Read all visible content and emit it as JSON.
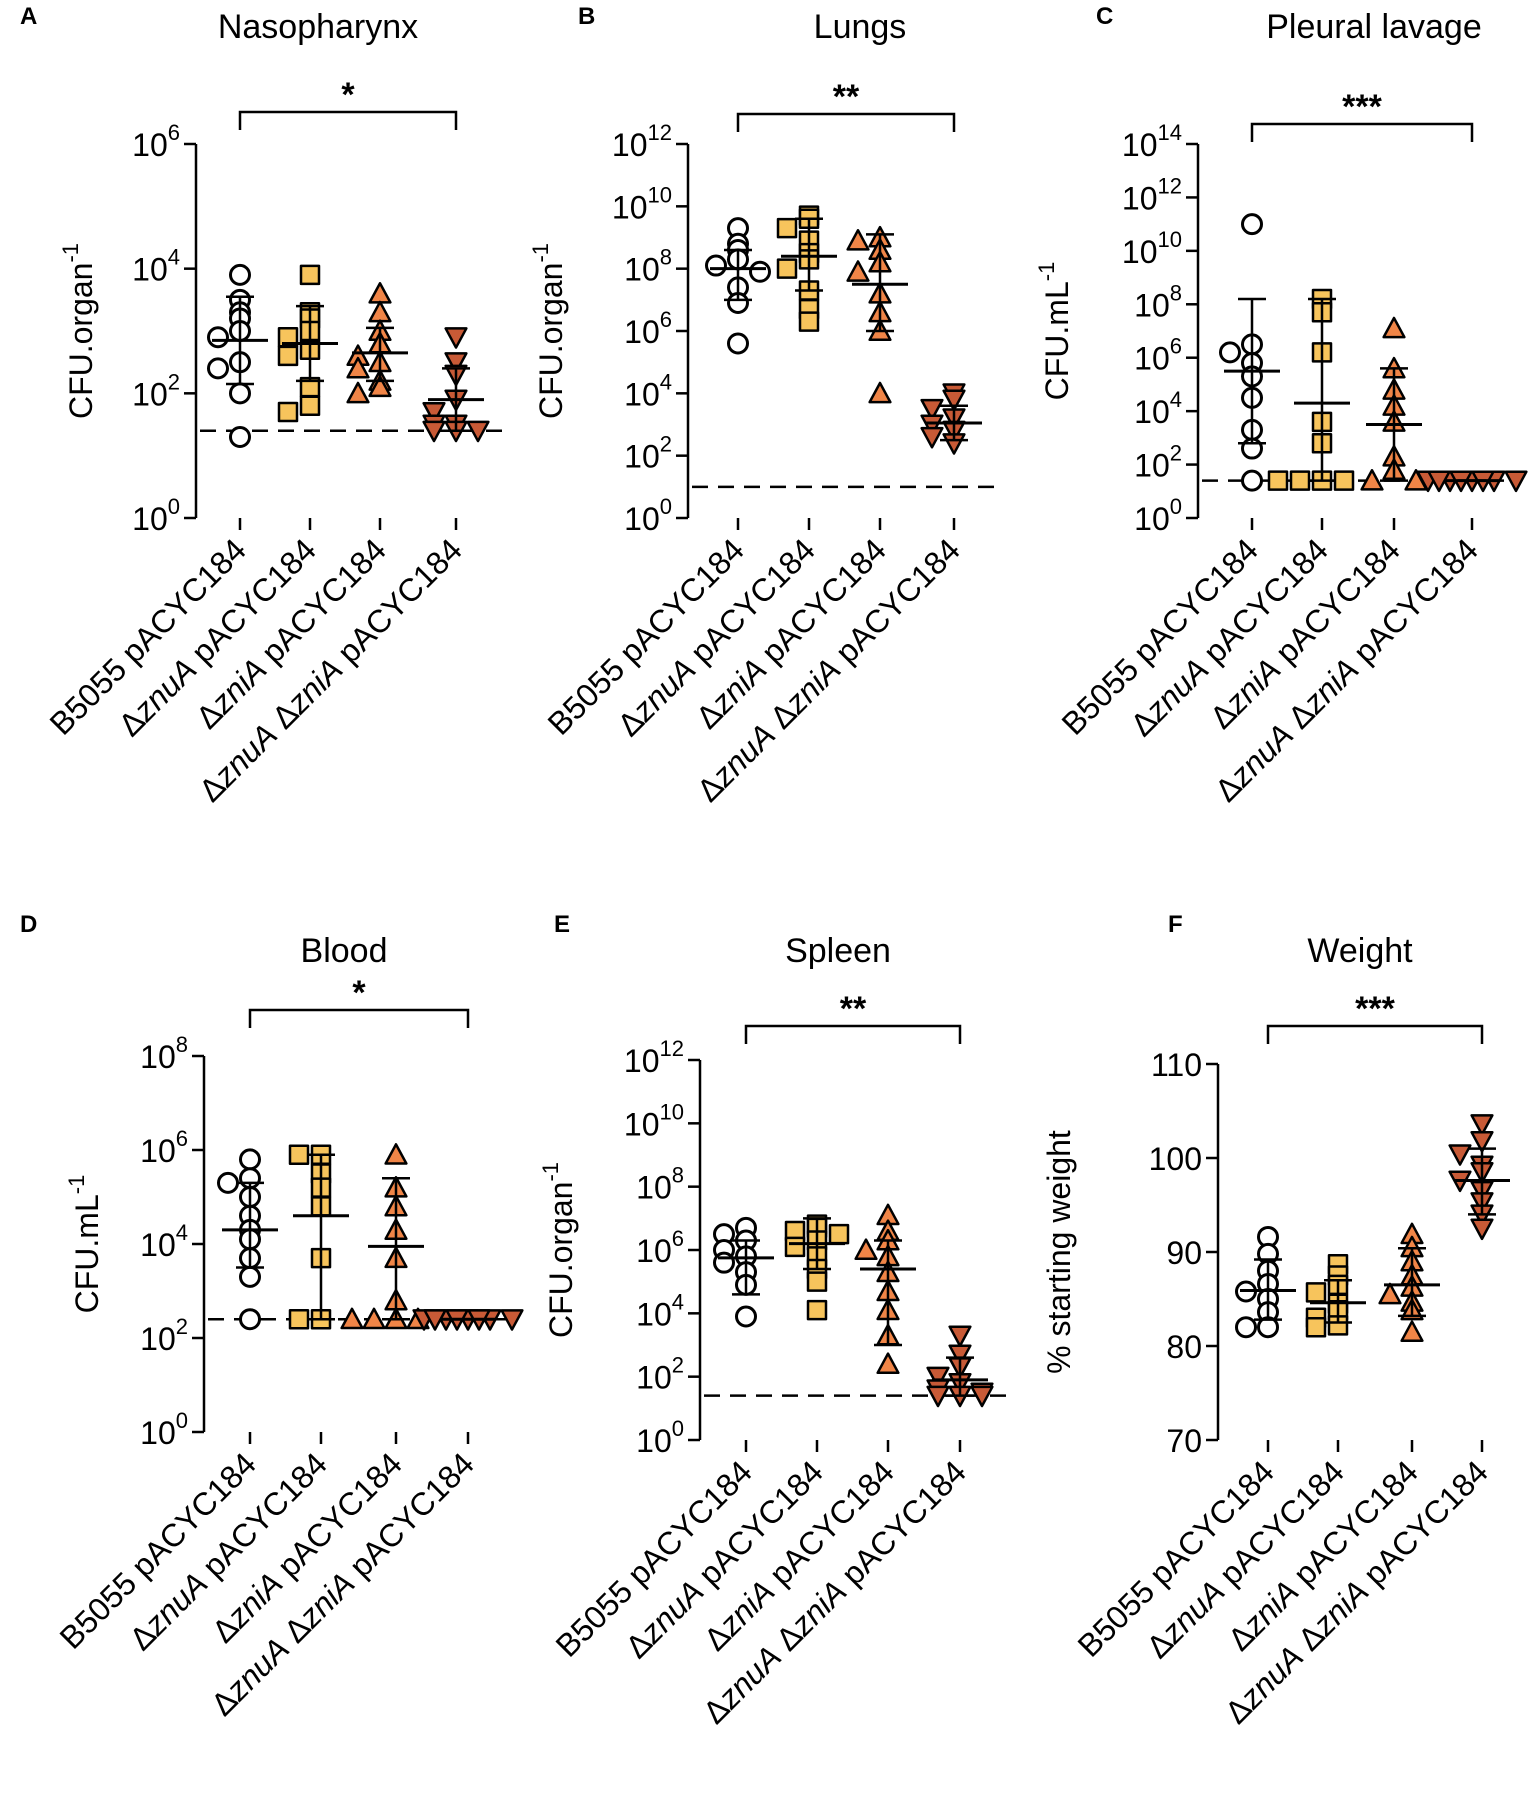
{
  "figure": {
    "category_labels": [
      [
        {
          "t": "B5055 pACYC184",
          "i": false
        }
      ],
      [
        {
          "t": "Δ",
          "i": false
        },
        {
          "t": "znuA",
          "i": true
        },
        {
          "t": " pACYC184",
          "i": false
        }
      ],
      [
        {
          "t": "Δ",
          "i": false
        },
        {
          "t": "zniA",
          "i": true
        },
        {
          "t": " pACYC184",
          "i": false
        }
      ],
      [
        {
          "t": "Δ",
          "i": false
        },
        {
          "t": "znuA",
          "i": true
        },
        {
          "t": " Δ",
          "i": false
        },
        {
          "t": "zniA",
          "i": true
        },
        {
          "t": " pACYC184",
          "i": false
        }
      ]
    ],
    "colors": {
      "group_fills": [
        "#ffffff",
        "#f7c45c",
        "#f08547",
        "#c85a36"
      ],
      "outline": "#000000"
    },
    "markers": [
      "circle",
      "square",
      "triangle-up",
      "triangle-down"
    ]
  },
  "chart_data": [
    {
      "panel": "A",
      "type": "scatter",
      "title": "Nasopharynx",
      "ylabel": "CFU.organ",
      "ylabel_sup": "-1",
      "scale": "log10",
      "ylim": [
        0,
        6
      ],
      "yticks": [
        0,
        2,
        4,
        6
      ],
      "tick_base": "10",
      "detection_limit": 1.4,
      "significance": "*",
      "bracket": [
        0,
        3
      ],
      "groups": [
        {
          "points": [
            3.9,
            3.5,
            3.3,
            3.2,
            3.0,
            2.9,
            2.5,
            2.4,
            2.0,
            1.3
          ],
          "mean": 2.85,
          "sd_lower": 2.15,
          "sd_upper": 3.55
        },
        {
          "points": [
            3.9,
            3.3,
            3.2,
            3.0,
            2.9,
            2.7,
            2.6,
            2.1,
            1.8,
            1.7
          ],
          "mean": 2.8,
          "sd_lower": 2.2,
          "sd_upper": 3.4
        },
        {
          "points": [
            3.6,
            3.3,
            3.0,
            2.8,
            2.6,
            2.5,
            2.4,
            2.2,
            2.1,
            2.0
          ],
          "mean": 2.65,
          "sd_lower": 2.2,
          "sd_upper": 3.05
        },
        {
          "points": [
            2.9,
            2.5,
            2.3,
            1.9,
            1.7,
            1.5,
            1.5,
            1.4,
            1.4,
            1.4
          ],
          "mean": 1.9,
          "sd_lower": 1.4,
          "sd_upper": 2.4
        }
      ]
    },
    {
      "panel": "B",
      "type": "scatter",
      "title": "Lungs",
      "ylabel": "CFU.organ",
      "ylabel_sup": "-1",
      "scale": "log10",
      "ylim": [
        0,
        12
      ],
      "yticks": [
        0,
        2,
        4,
        6,
        8,
        10,
        12
      ],
      "tick_base": "10",
      "detection_limit": 1.0,
      "significance": "**",
      "bracket": [
        0,
        3
      ],
      "groups": [
        {
          "points": [
            9.3,
            8.8,
            8.6,
            8.3,
            8.1,
            7.9,
            7.4,
            6.9,
            5.6
          ],
          "mean": 8.0,
          "sd_lower": 7.0,
          "sd_upper": 8.6
        },
        {
          "points": [
            9.7,
            9.6,
            9.3,
            8.9,
            8.5,
            8.3,
            8.0,
            7.3,
            6.7,
            6.3
          ],
          "mean": 8.4,
          "sd_lower": 7.3,
          "sd_upper": 9.6
        },
        {
          "points": [
            9.0,
            8.9,
            8.6,
            8.2,
            7.9,
            7.2,
            6.6,
            6.0,
            4.0
          ],
          "mean": 7.5,
          "sd_lower": 6.0,
          "sd_upper": 9.1
        },
        {
          "points": [
            4.0,
            3.8,
            3.5,
            3.2,
            3.0,
            2.8,
            2.6,
            2.4
          ],
          "mean": 3.05,
          "sd_lower": 2.5,
          "sd_upper": 3.6
        }
      ]
    },
    {
      "panel": "C",
      "type": "scatter",
      "title": "Pleural lavage",
      "ylabel": "CFU.mL",
      "ylabel_sup": "-1",
      "scale": "log10",
      "ylim": [
        0,
        14
      ],
      "yticks": [
        0,
        2,
        4,
        6,
        8,
        10,
        12,
        14
      ],
      "tick_base": "10",
      "detection_limit": 1.4,
      "significance": "***",
      "bracket": [
        0,
        3
      ],
      "groups": [
        {
          "points": [
            11.0,
            6.5,
            6.2,
            5.8,
            5.3,
            4.5,
            3.3,
            2.6,
            1.4
          ],
          "mean": 5.5,
          "sd_lower": 2.8,
          "sd_upper": 8.2
        },
        {
          "points": [
            8.2,
            7.7,
            6.2,
            3.6,
            2.8,
            1.4,
            1.4,
            1.4,
            1.4
          ],
          "mean": 4.3,
          "sd_lower": 1.4,
          "sd_upper": 8.2
        },
        {
          "points": [
            7.1,
            5.6,
            4.8,
            4.2,
            3.6,
            2.3,
            1.8,
            1.4,
            1.4
          ],
          "mean": 3.5,
          "sd_lower": 1.4,
          "sd_upper": 5.6
        },
        {
          "points": [
            1.4,
            1.4,
            1.4,
            1.4,
            1.4,
            1.4,
            1.4,
            1.4
          ],
          "mean": 1.4,
          "sd_lower": 1.4,
          "sd_upper": 1.4
        }
      ]
    },
    {
      "panel": "D",
      "type": "scatter",
      "title": "Blood",
      "ylabel": "CFU.mL",
      "ylabel_sup": "-1",
      "scale": "log10",
      "ylim": [
        0,
        8
      ],
      "yticks": [
        0,
        2,
        4,
        6,
        8
      ],
      "tick_base": "10",
      "detection_limit": 2.4,
      "significance": "*",
      "bracket": [
        0,
        3
      ],
      "groups": [
        {
          "points": [
            5.8,
            5.4,
            5.3,
            5.0,
            4.6,
            4.3,
            4.1,
            3.7,
            3.3,
            2.4
          ],
          "mean": 4.3,
          "sd_lower": 3.5,
          "sd_upper": 5.3
        },
        {
          "points": [
            5.9,
            5.9,
            5.5,
            5.2,
            4.8,
            3.7,
            2.4,
            2.4
          ],
          "mean": 4.6,
          "sd_lower": 2.4,
          "sd_upper": 5.9
        },
        {
          "points": [
            5.9,
            5.2,
            4.8,
            4.3,
            3.7,
            2.8,
            2.4,
            2.4,
            2.4,
            2.4
          ],
          "mean": 3.95,
          "sd_lower": 2.4,
          "sd_upper": 5.4
        },
        {
          "points": [
            2.4,
            2.4,
            2.4,
            2.4,
            2.4,
            2.4,
            2.4,
            2.4
          ],
          "mean": 2.4,
          "sd_lower": 2.4,
          "sd_upper": 2.4
        }
      ]
    },
    {
      "panel": "E",
      "type": "scatter",
      "title": "Spleen",
      "ylabel": "CFU.organ",
      "ylabel_sup": "-1",
      "scale": "log10",
      "ylim": [
        0,
        12
      ],
      "yticks": [
        0,
        2,
        4,
        6,
        8,
        10,
        12
      ],
      "tick_base": "10",
      "detection_limit": 1.4,
      "significance": "**",
      "bracket": [
        0,
        3
      ],
      "groups": [
        {
          "points": [
            6.7,
            6.5,
            6.3,
            6.0,
            5.8,
            5.6,
            5.3,
            4.9,
            3.9
          ],
          "mean": 5.75,
          "sd_lower": 4.6,
          "sd_upper": 6.3
        },
        {
          "points": [
            6.8,
            6.7,
            6.6,
            6.5,
            6.3,
            6.1,
            5.8,
            5.4,
            5.0,
            4.1
          ],
          "mean": 6.2,
          "sd_lower": 5.4,
          "sd_upper": 7.0
        },
        {
          "points": [
            7.1,
            6.6,
            6.3,
            6.0,
            5.8,
            5.3,
            4.7,
            4.1,
            3.3,
            2.4
          ],
          "mean": 5.4,
          "sd_lower": 3.0,
          "sd_upper": 6.3
        },
        {
          "points": [
            3.3,
            2.7,
            2.3,
            2.0,
            1.8,
            1.6,
            1.5,
            1.4,
            1.4,
            1.4
          ],
          "mean": 1.9,
          "sd_lower": 1.4,
          "sd_upper": 2.6
        }
      ]
    },
    {
      "panel": "F",
      "type": "scatter",
      "title": "Weight",
      "ylabel": "% starting weight",
      "ylabel_sup": "",
      "scale": "linear",
      "ylim": [
        70,
        110
      ],
      "yticks": [
        70,
        80,
        90,
        100,
        110
      ],
      "tick_base": "",
      "detection_limit": null,
      "significance": "***",
      "bracket": [
        0,
        3
      ],
      "groups": [
        {
          "points": [
            91.6,
            89.8,
            88.0,
            86.6,
            85.8,
            85.0,
            83.6,
            82.0,
            82.0
          ],
          "mean": 85.9,
          "sd_lower": 82.8,
          "sd_upper": 89.2
        },
        {
          "points": [
            88.7,
            87.5,
            86.5,
            85.7,
            84.5,
            83.8,
            83.0,
            82.2,
            82.0
          ],
          "mean": 84.6,
          "sd_lower": 82.5,
          "sd_upper": 87.0
        },
        {
          "points": [
            91.9,
            90.5,
            89.0,
            87.5,
            86.3,
            85.5,
            84.7,
            83.8,
            81.5
          ],
          "mean": 86.5,
          "sd_lower": 83.2,
          "sd_upper": 90.4
        },
        {
          "points": [
            103.6,
            101.8,
            100.4,
            99.2,
            98.5,
            97.6,
            96.5,
            95.3,
            94.0,
            92.5
          ],
          "mean": 97.6,
          "sd_lower": 94.0,
          "sd_upper": 101.0
        }
      ]
    }
  ]
}
